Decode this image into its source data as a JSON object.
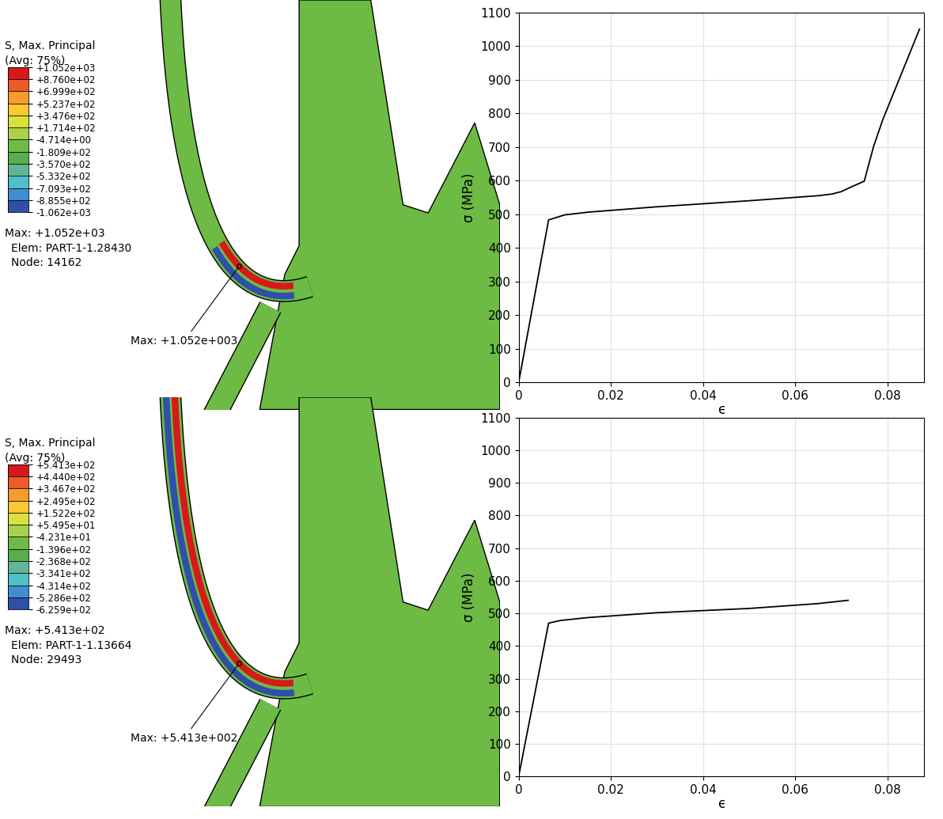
{
  "chart_data": [
    {
      "type": "contour",
      "title": "S, Max. Principal",
      "subtitle": "(Avg: 75%)",
      "colorbar": {
        "ticks": [
          {
            "value": 1052,
            "label": "+1.052e+03"
          },
          {
            "value": 876.0,
            "label": "+8.760e+02"
          },
          {
            "value": 699.9,
            "label": "+6.999e+02"
          },
          {
            "value": 523.7,
            "label": "+5.237e+02"
          },
          {
            "value": 347.6,
            "label": "+3.476e+02"
          },
          {
            "value": 171.4,
            "label": "+1.714e+02"
          },
          {
            "value": -4.714,
            "label": "-4.714e+00"
          },
          {
            "value": -180.9,
            "label": "-1.809e+02"
          },
          {
            "value": -357.0,
            "label": "-3.570e+02"
          },
          {
            "value": -533.2,
            "label": "-5.332e+02"
          },
          {
            "value": -709.3,
            "label": "-7.093e+02"
          },
          {
            "value": -885.5,
            "label": "-8.855e+02"
          },
          {
            "value": -1062,
            "label": "-1.062e+03"
          }
        ],
        "colors": [
          "#d7191c",
          "#ee5a2a",
          "#f89a2c",
          "#fdc832",
          "#d9e23c",
          "#a9d14a",
          "#6dbb45",
          "#58ad4c",
          "#62b694",
          "#4fc0c8",
          "#3f8fd0",
          "#2f4fa8"
        ]
      },
      "annotations": [
        "Max: +1.052e+03",
        "Elem: PART-1-1.28430",
        "Node: 14162"
      ],
      "callout": "Max: +1.052e+003"
    },
    {
      "type": "line",
      "xlabel": "ϵ",
      "ylabel": "σ (MPa)",
      "color": "#000000",
      "grid": true,
      "x": [
        0,
        0.0065,
        0.01,
        0.015,
        0.03,
        0.05,
        0.065,
        0.068,
        0.07,
        0.072,
        0.075,
        0.077,
        0.079,
        0.087
      ],
      "values": [
        0,
        483,
        498,
        506,
        522,
        540,
        555,
        560,
        567,
        580,
        598,
        700,
        780,
        1050
      ],
      "xlim": [
        0,
        0.088
      ],
      "xticks": [
        0,
        0.02,
        0.04,
        0.06,
        0.08
      ],
      "ylim": [
        0,
        1100
      ],
      "yticks": [
        0,
        100,
        200,
        300,
        400,
        500,
        600,
        700,
        800,
        900,
        1000,
        1100
      ]
    },
    {
      "type": "contour",
      "title": "S, Max. Principal",
      "subtitle": "(Avg: 75%)",
      "colorbar": {
        "ticks": [
          {
            "value": 541.3,
            "label": "+5.413e+02"
          },
          {
            "value": 444.0,
            "label": "+4.440e+02"
          },
          {
            "value": 346.7,
            "label": "+3.467e+02"
          },
          {
            "value": 249.5,
            "label": "+2.495e+02"
          },
          {
            "value": 152.2,
            "label": "+1.522e+02"
          },
          {
            "value": 54.95,
            "label": "+5.495e+01"
          },
          {
            "value": -42.31,
            "label": "-4.231e+01"
          },
          {
            "value": -139.6,
            "label": "-1.396e+02"
          },
          {
            "value": -236.8,
            "label": "-2.368e+02"
          },
          {
            "value": -334.1,
            "label": "-3.341e+02"
          },
          {
            "value": -431.4,
            "label": "-4.314e+02"
          },
          {
            "value": -528.6,
            "label": "-5.286e+02"
          },
          {
            "value": -625.9,
            "label": "-6.259e+02"
          }
        ],
        "colors": [
          "#d7191c",
          "#ee5a2a",
          "#f89a2c",
          "#fdc832",
          "#d9e23c",
          "#a9d14a",
          "#6dbb45",
          "#58ad4c",
          "#62b694",
          "#4fc0c8",
          "#3f8fd0",
          "#2f4fa8"
        ]
      },
      "annotations": [
        "Max: +5.413e+02",
        "Elem: PART-1-1.13664",
        "Node: 29493"
      ],
      "callout": "Max: +5.413e+002"
    },
    {
      "type": "line",
      "xlabel": "ϵ",
      "ylabel": "σ (MPa)",
      "color": "#000000",
      "grid": true,
      "x": [
        0,
        0.0065,
        0.009,
        0.015,
        0.03,
        0.05,
        0.065,
        0.0715
      ],
      "values": [
        0,
        470,
        478,
        487,
        502,
        515,
        530,
        540
      ],
      "xlim": [
        0,
        0.088
      ],
      "xticks": [
        0,
        0.02,
        0.04,
        0.06,
        0.08
      ],
      "ylim": [
        0,
        1100
      ],
      "yticks": [
        0,
        100,
        200,
        300,
        400,
        500,
        600,
        700,
        800,
        900,
        1000,
        1100
      ]
    }
  ]
}
